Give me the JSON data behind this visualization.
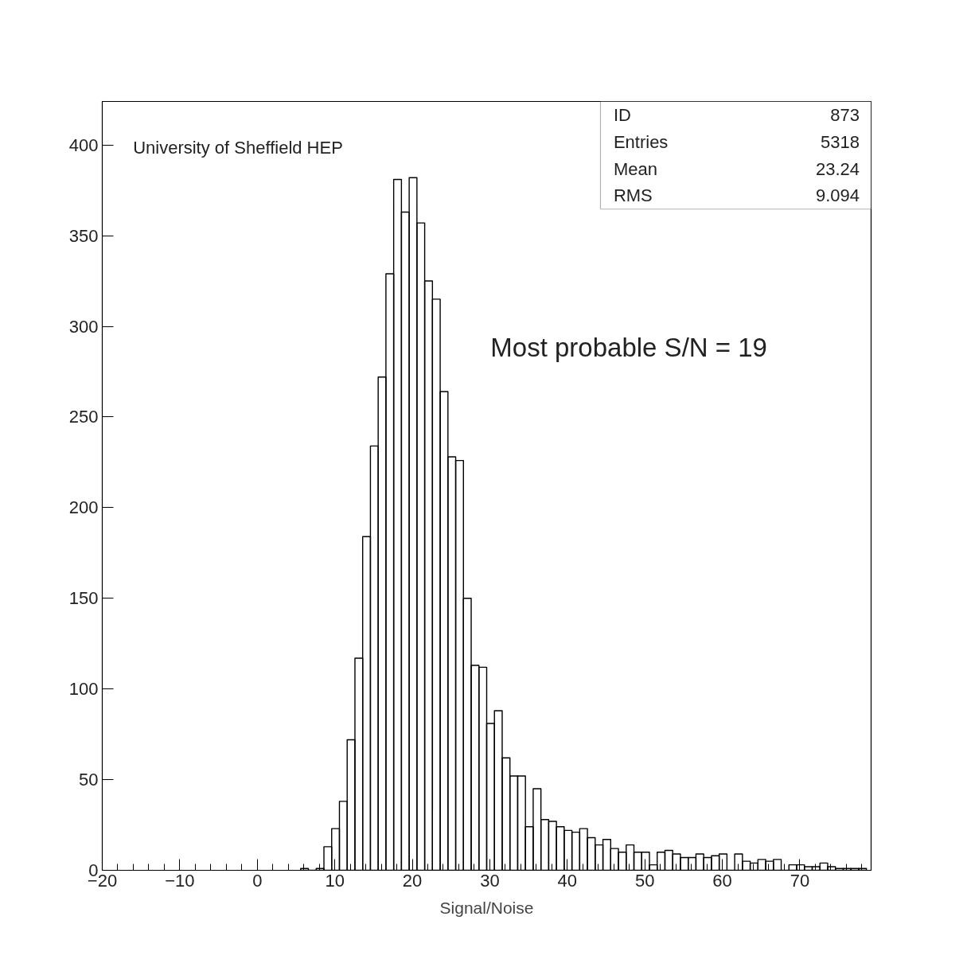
{
  "chart_data": {
    "type": "histogram",
    "xlabel": "Signal/Noise",
    "bins": [
      5.6,
      6.6,
      7.6,
      8.6,
      9.6,
      10.6,
      11.6,
      12.6,
      13.6,
      14.6,
      15.6,
      16.6,
      17.6,
      18.6,
      19.6,
      20.6,
      21.6,
      22.6,
      23.6,
      24.6,
      25.6,
      26.6,
      27.6,
      28.6,
      29.6,
      30.6,
      31.6,
      32.6,
      33.6,
      34.6,
      35.6,
      36.6,
      37.6,
      38.6,
      39.6,
      40.6,
      41.6,
      42.6,
      43.6,
      44.6,
      45.6,
      46.6,
      47.6,
      48.6,
      49.6,
      50.6,
      51.6,
      52.6,
      53.6,
      54.6,
      55.6,
      56.6,
      57.6,
      58.6,
      59.6,
      60.6,
      61.6,
      62.6,
      63.6,
      64.6,
      65.6,
      66.6,
      67.6,
      68.6,
      69.6,
      70.6,
      71.6,
      72.6,
      73.6,
      74.6,
      75.6,
      76.6,
      77.6,
      78.6
    ],
    "values": [
      1,
      0,
      1,
      13,
      23,
      38,
      72,
      117,
      184,
      234,
      272,
      329,
      381,
      363,
      382,
      357,
      325,
      315,
      264,
      228,
      226,
      150,
      113,
      112,
      81,
      88,
      62,
      52,
      52,
      24,
      45,
      28,
      27,
      24,
      22,
      21,
      23,
      18,
      14,
      17,
      12,
      10,
      14,
      10,
      10,
      3,
      10,
      11,
      9,
      7,
      7,
      9,
      7,
      8,
      9,
      0,
      9,
      5,
      4,
      6,
      5,
      6,
      0,
      3,
      3,
      2,
      2,
      4,
      2,
      1,
      1,
      1,
      1
    ],
    "color": "#000000",
    "xlim": [
      -20,
      79.2
    ],
    "ylim": [
      0,
      424
    ],
    "xticks": [
      -20,
      {
        "value": -18,
        "label": null
      },
      {
        "value": -16,
        "label": null
      },
      {
        "value": -14,
        "label": null
      },
      {
        "value": -12,
        "label": null
      },
      -10,
      {
        "value": -8,
        "label": null
      },
      {
        "value": -6,
        "label": null
      },
      {
        "value": -4,
        "label": null
      },
      {
        "value": -2,
        "label": null
      },
      0,
      {
        "value": 2,
        "label": null
      },
      {
        "value": 4,
        "label": null
      },
      {
        "value": 6,
        "label": null
      },
      {
        "value": 8,
        "label": null
      },
      10,
      {
        "value": 12,
        "label": null
      },
      {
        "value": 14,
        "label": null
      },
      {
        "value": 16,
        "label": null
      },
      {
        "value": 18,
        "label": null
      },
      20,
      {
        "value": 22,
        "label": null
      },
      {
        "value": 24,
        "label": null
      },
      {
        "value": 26,
        "label": null
      },
      {
        "value": 28,
        "label": null
      },
      30,
      {
        "value": 32,
        "label": null
      },
      {
        "value": 34,
        "label": null
      },
      {
        "value": 36,
        "label": null
      },
      {
        "value": 38,
        "label": null
      },
      40,
      {
        "value": 42,
        "label": null
      },
      {
        "value": 44,
        "label": null
      },
      {
        "value": 46,
        "label": null
      },
      {
        "value": 48,
        "label": null
      },
      50,
      {
        "value": 52,
        "label": null
      },
      {
        "value": 54,
        "label": null
      },
      {
        "value": 56,
        "label": null
      },
      {
        "value": 58,
        "label": null
      },
      60,
      {
        "value": 62,
        "label": null
      },
      {
        "value": 64,
        "label": null
      },
      {
        "value": 66,
        "label": null
      },
      {
        "value": 68,
        "label": null
      },
      70,
      {
        "value": 72,
        "label": null
      },
      {
        "value": 74,
        "label": null
      },
      {
        "value": 76,
        "label": null
      },
      {
        "value": 78,
        "label": null
      }
    ],
    "yticks": [
      0,
      50,
      100,
      150,
      200,
      250,
      300,
      350,
      400
    ],
    "grid": false,
    "annotations": [
      "University of Sheffield HEP",
      "Most probable S/N = 19",
      "ID",
      "873",
      "Entries",
      "5318",
      "Mean",
      "23.24",
      "RMS",
      "9.094"
    ]
  }
}
